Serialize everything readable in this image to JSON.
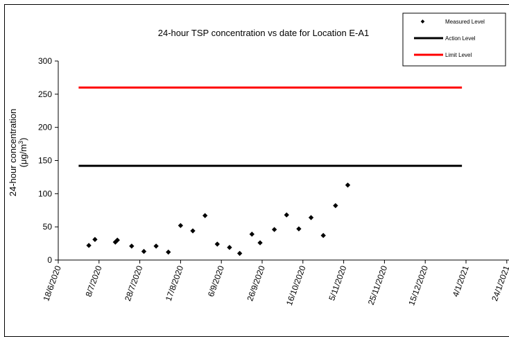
{
  "chart_data": {
    "type": "scatter",
    "title": "24-hour TSP concentration vs date for Location E-A1",
    "ylabel_line1": "24-hour concentration",
    "ylabel_line2_prefix": "(μg/m",
    "ylabel_line2_sup": "3",
    "ylabel_line2_suffix": ")",
    "ylim": [
      0,
      300
    ],
    "y_ticks": [
      "0",
      "50",
      "100",
      "150",
      "200",
      "250",
      "300"
    ],
    "x_ticks": [
      "18/6/2020",
      "8/7/2020",
      "28/7/2020",
      "17/8/2020",
      "6/9/2020",
      "26/9/2020",
      "16/10/2020",
      "5/11/2020",
      "25/11/2020",
      "15/12/2020",
      "4/1/2021",
      "24/1/2021"
    ],
    "grid": false,
    "legend_position": "top-right",
    "legend": [
      {
        "label": "Measured Level",
        "type": "marker",
        "color": "#000000"
      },
      {
        "label": "Action Level",
        "type": "line",
        "color": "#000000"
      },
      {
        "label": "Limit Level",
        "type": "line",
        "color": "#ff0000"
      }
    ],
    "series": [
      {
        "name": "Measured Level",
        "points": [
          {
            "x": "3/7/2020",
            "y": 22
          },
          {
            "x": "6/7/2020",
            "y": 31
          },
          {
            "x": "16/7/2020",
            "y": 27
          },
          {
            "x": "17/7/2020",
            "y": 30
          },
          {
            "x": "24/7/2020",
            "y": 21
          },
          {
            "x": "30/7/2020",
            "y": 13
          },
          {
            "x": "5/8/2020",
            "y": 21
          },
          {
            "x": "11/8/2020",
            "y": 12
          },
          {
            "x": "17/8/2020",
            "y": 52
          },
          {
            "x": "23/8/2020",
            "y": 44
          },
          {
            "x": "29/8/2020",
            "y": 67
          },
          {
            "x": "4/9/2020",
            "y": 24
          },
          {
            "x": "10/9/2020",
            "y": 19
          },
          {
            "x": "15/9/2020",
            "y": 10
          },
          {
            "x": "21/9/2020",
            "y": 39
          },
          {
            "x": "25/9/2020",
            "y": 26
          },
          {
            "x": "2/10/2020",
            "y": 46
          },
          {
            "x": "8/10/2020",
            "y": 68
          },
          {
            "x": "14/10/2020",
            "y": 47
          },
          {
            "x": "20/10/2020",
            "y": 64
          },
          {
            "x": "26/10/2020",
            "y": 37
          },
          {
            "x": "1/11/2020",
            "y": 82
          },
          {
            "x": "7/11/2020",
            "y": 113
          }
        ]
      },
      {
        "name": "Action Level",
        "color": "#000000",
        "points": [
          {
            "x": "28/6/2020",
            "y": 142
          },
          {
            "x": "2/1/2021",
            "y": 142
          }
        ]
      },
      {
        "name": "Limit Level",
        "color": "#ff0000",
        "points": [
          {
            "x": "28/6/2020",
            "y": 260
          },
          {
            "x": "2/1/2021",
            "y": 260
          }
        ]
      }
    ]
  }
}
